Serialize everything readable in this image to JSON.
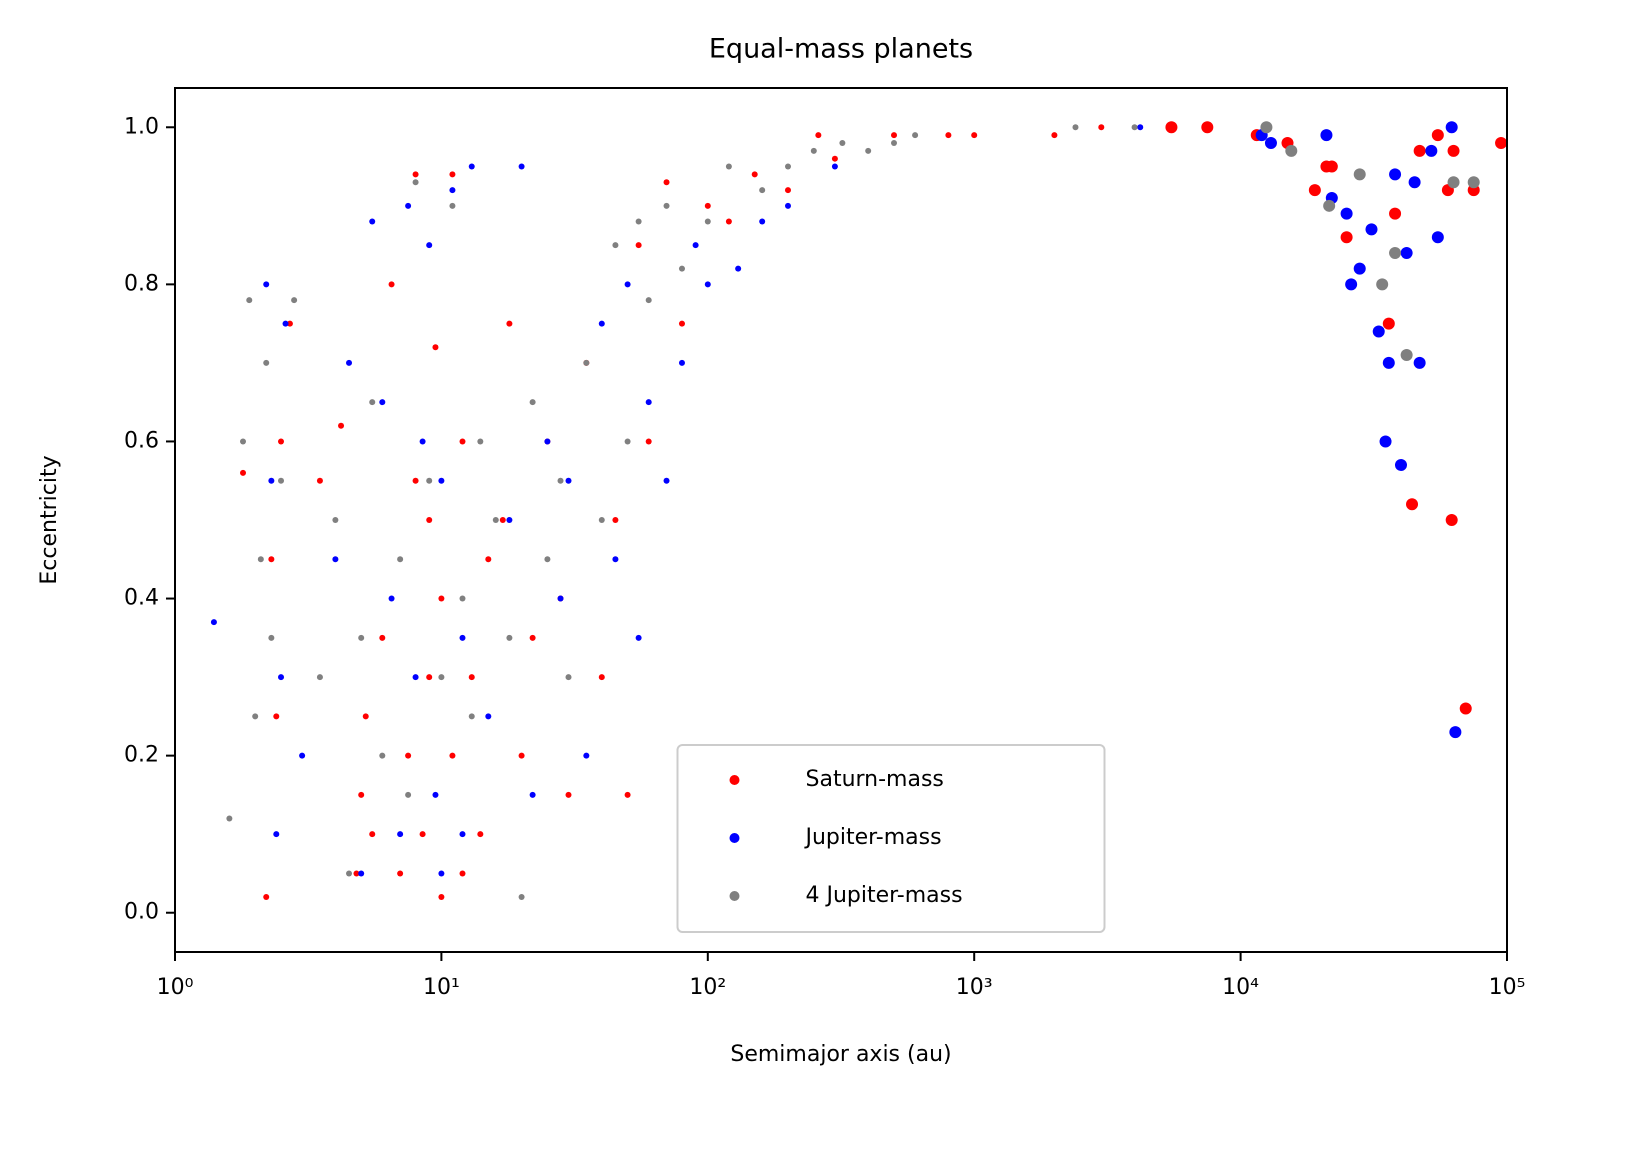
{
  "chart_data": {
    "type": "scatter",
    "title": "Equal-mass planets",
    "x_label": "Semimajor axis (au)",
    "y_label": "Eccentricity",
    "xscale": "log",
    "xlim": [
      1,
      100000
    ],
    "xticks": [
      {
        "value": 1,
        "label": "10⁰"
      },
      {
        "value": 10,
        "label": "10¹"
      },
      {
        "value": 100,
        "label": "10²"
      },
      {
        "value": 1000,
        "label": "10³"
      },
      {
        "value": 10000,
        "label": "10⁴"
      },
      {
        "value": 100000,
        "label": "10⁵"
      }
    ],
    "ylim": [
      -0.05,
      1.05
    ],
    "yticks": [
      {
        "value": 0,
        "label": "0.0"
      },
      0.2,
      0.4,
      0.6,
      0.8,
      {
        "value": 1,
        "label": "1.0"
      }
    ],
    "legend": "lower center",
    "series": [
      {
        "name": "Saturn-mass",
        "color": "#ff0000",
        "x": [
          2.2,
          2.3,
          2.5,
          2.7,
          1.8,
          2.4,
          3.5,
          4.2,
          4.8,
          5,
          5.2,
          5.5,
          6,
          6.5,
          7,
          7.5,
          8,
          8,
          8.5,
          9,
          9,
          9.5,
          10,
          10,
          11,
          11,
          12,
          12,
          13,
          14,
          15,
          17,
          18,
          20,
          22,
          25,
          28,
          30,
          35,
          40,
          45,
          50,
          55,
          60,
          70,
          80,
          100,
          120,
          150,
          200,
          260,
          300,
          500,
          800,
          1000,
          2000,
          3000,
          5500,
          7500,
          11500,
          15000,
          19000,
          21000,
          22000,
          25000,
          38000,
          36000,
          44000,
          47000,
          55000,
          60000,
          62000,
          63000,
          70000,
          75000,
          95000
        ],
        "values": [
          0.02,
          0.45,
          0.6,
          0.75,
          0.56,
          0.25,
          0.55,
          0.62,
          0.05,
          0.15,
          0.25,
          0.1,
          0.35,
          0.8,
          0.05,
          0.2,
          0.94,
          0.55,
          0.1,
          0.3,
          0.5,
          0.72,
          0.02,
          0.4,
          0.94,
          0.2,
          0.05,
          0.6,
          0.3,
          0.1,
          0.45,
          0.5,
          0.75,
          0.2,
          0.35,
          0.6,
          0.4,
          0.15,
          0.7,
          0.3,
          0.5,
          0.15,
          0.85,
          0.6,
          0.93,
          0.75,
          0.9,
          0.88,
          0.94,
          0.92,
          0.99,
          0.96,
          0.99,
          0.99,
          0.99,
          0.99,
          1.0,
          1.0,
          1.0,
          0.99,
          0.98,
          0.92,
          0.95,
          0.95,
          0.86,
          0.89,
          0.75,
          0.52,
          0.97,
          0.99,
          0.92,
          0.5,
          0.97,
          0.26,
          0.92,
          0.98
        ]
      },
      {
        "name": "Jupiter-mass",
        "color": "#0000ff",
        "x": [
          1.4,
          2.2,
          2.3,
          2.4,
          2.5,
          2.6,
          3,
          4,
          4.5,
          5,
          5.5,
          6,
          6.5,
          7,
          7.5,
          8,
          8.5,
          9,
          9.5,
          10,
          10,
          11,
          12,
          12,
          13,
          15,
          18,
          20,
          22,
          25,
          28,
          30,
          35,
          40,
          45,
          50,
          55,
          60,
          70,
          80,
          90,
          100,
          130,
          160,
          200,
          300,
          4200,
          12000,
          13000,
          21000,
          22000,
          25000,
          26000,
          28000,
          31000,
          33000,
          35000,
          36000,
          38000,
          40000,
          42000,
          45000,
          47000,
          52000,
          55000,
          62000,
          64000
        ],
        "values": [
          0.37,
          0.8,
          0.55,
          0.1,
          0.3,
          0.75,
          0.2,
          0.45,
          0.7,
          0.05,
          0.88,
          0.65,
          0.4,
          0.1,
          0.9,
          0.3,
          0.6,
          0.85,
          0.15,
          0.55,
          0.05,
          0.92,
          0.35,
          0.1,
          0.95,
          0.25,
          0.5,
          0.95,
          0.15,
          0.6,
          0.4,
          0.55,
          0.2,
          0.75,
          0.45,
          0.8,
          0.35,
          0.65,
          0.55,
          0.7,
          0.85,
          0.8,
          0.82,
          0.88,
          0.9,
          0.95,
          1.0,
          0.99,
          0.98,
          0.99,
          0.91,
          0.89,
          0.8,
          0.82,
          0.87,
          0.74,
          0.6,
          0.7,
          0.94,
          0.57,
          0.84,
          0.93,
          0.7,
          0.97,
          0.86,
          1.0,
          0.23
        ]
      },
      {
        "name": "4 Jupiter-mass",
        "color": "#808080",
        "x": [
          1.6,
          1.8,
          1.9,
          2,
          2.1,
          2.2,
          2.3,
          2.5,
          2.8,
          3.5,
          4,
          4.5,
          5,
          5.5,
          6,
          7,
          7.5,
          8,
          9,
          10,
          11,
          12,
          13,
          14,
          16,
          18,
          20,
          22,
          25,
          28,
          30,
          35,
          40,
          45,
          50,
          55,
          60,
          70,
          80,
          100,
          120,
          160,
          200,
          250,
          320,
          400,
          500,
          600,
          2400,
          4000,
          12500,
          15500,
          21500,
          28000,
          34000,
          38000,
          42000,
          63000,
          75000
        ],
        "values": [
          0.12,
          0.6,
          0.78,
          0.25,
          0.45,
          0.7,
          0.35,
          0.55,
          0.78,
          0.3,
          0.5,
          0.05,
          0.35,
          0.65,
          0.2,
          0.45,
          0.15,
          0.93,
          0.55,
          0.3,
          0.9,
          0.4,
          0.25,
          0.6,
          0.5,
          0.35,
          0.02,
          0.65,
          0.45,
          0.55,
          0.3,
          0.7,
          0.5,
          0.85,
          0.6,
          0.88,
          0.78,
          0.9,
          0.82,
          0.88,
          0.95,
          0.92,
          0.95,
          0.97,
          0.98,
          0.97,
          0.98,
          0.99,
          1.0,
          1.0,
          1.0,
          0.97,
          0.9,
          0.94,
          0.8,
          0.84,
          0.71,
          0.93,
          0.93
        ]
      }
    ]
  }
}
